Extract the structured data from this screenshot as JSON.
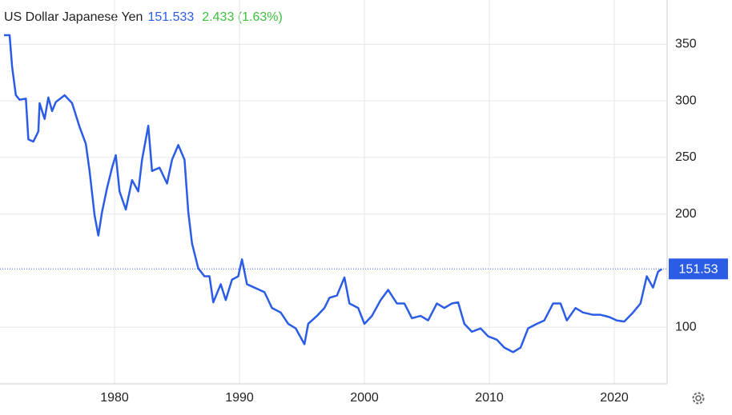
{
  "chart_data": {
    "type": "line",
    "title": "US Dollar Japanese Yen",
    "last_price": "151.533",
    "change": "2.433 (1.63%)",
    "current_value": 151.53,
    "xlim": [
      1970.83,
      2024.23
    ],
    "xticks": [
      1980,
      1990,
      2000,
      2010,
      2020
    ],
    "ylim": [
      50,
      375
    ],
    "yticks": [
      100,
      200,
      250,
      300,
      350
    ],
    "grid": true,
    "x": [
      1971.15,
      1971.6,
      1971.8,
      1972.1,
      1972.4,
      1972.9,
      1973.1,
      1973.5,
      1973.9,
      1974.0,
      1974.4,
      1974.7,
      1975.0,
      1975.3,
      1976.0,
      1976.6,
      1977.2,
      1977.7,
      1978.0,
      1978.4,
      1978.7,
      1979.0,
      1979.4,
      1979.8,
      1980.1,
      1980.4,
      1980.9,
      1981.4,
      1981.9,
      1982.2,
      1982.7,
      1983.0,
      1983.6,
      1984.2,
      1984.6,
      1985.1,
      1985.6,
      1985.9,
      1986.2,
      1986.7,
      1987.2,
      1987.6,
      1987.9,
      1988.5,
      1988.9,
      1989.4,
      1989.9,
      1990.2,
      1990.6,
      1991.2,
      1992.0,
      1992.6,
      1993.3,
      1993.9,
      1994.5,
      1995.2,
      1995.5,
      1996.2,
      1996.8,
      1997.2,
      1997.8,
      1998.4,
      1998.8,
      1999.5,
      2000.0,
      2000.6,
      2001.3,
      2001.9,
      2002.6,
      2003.2,
      2003.8,
      2004.5,
      2005.1,
      2005.8,
      2006.4,
      2007.0,
      2007.5,
      2008.0,
      2008.6,
      2009.3,
      2009.9,
      2010.6,
      2011.2,
      2011.9,
      2012.5,
      2013.1,
      2013.8,
      2014.4,
      2015.1,
      2015.7,
      2016.2,
      2016.9,
      2017.5,
      2018.3,
      2018.9,
      2019.6,
      2020.2,
      2020.8,
      2021.5,
      2022.1,
      2022.6,
      2023.1,
      2023.5,
      2023.8
    ],
    "series": [
      {
        "name": "US Dollar Japanese Yen",
        "color": "#2b5ce6",
        "values": [
          358,
          358,
          330,
          305,
          301,
          302,
          266,
          264,
          273,
          298,
          284,
          303,
          291,
          299,
          305,
          298,
          277,
          262,
          238,
          199,
          181,
          202,
          223,
          241,
          252,
          220,
          204,
          230,
          220,
          248,
          278,
          238,
          241,
          227,
          248,
          261,
          248,
          202,
          174,
          152,
          145,
          145,
          122,
          138,
          124,
          142,
          145,
          160,
          138,
          135,
          131,
          117,
          113,
          103,
          99,
          85,
          103,
          110,
          117,
          126,
          128,
          144,
          121,
          117,
          103,
          110,
          124,
          133,
          121,
          121,
          108,
          110,
          106,
          121,
          117,
          121,
          122,
          103,
          96,
          99,
          92,
          89,
          82,
          78,
          82,
          99,
          103,
          106,
          121,
          121,
          106,
          117,
          113,
          111,
          111,
          109,
          106,
          105,
          113,
          121,
          145,
          135,
          149,
          151.5
        ]
      }
    ]
  }
}
